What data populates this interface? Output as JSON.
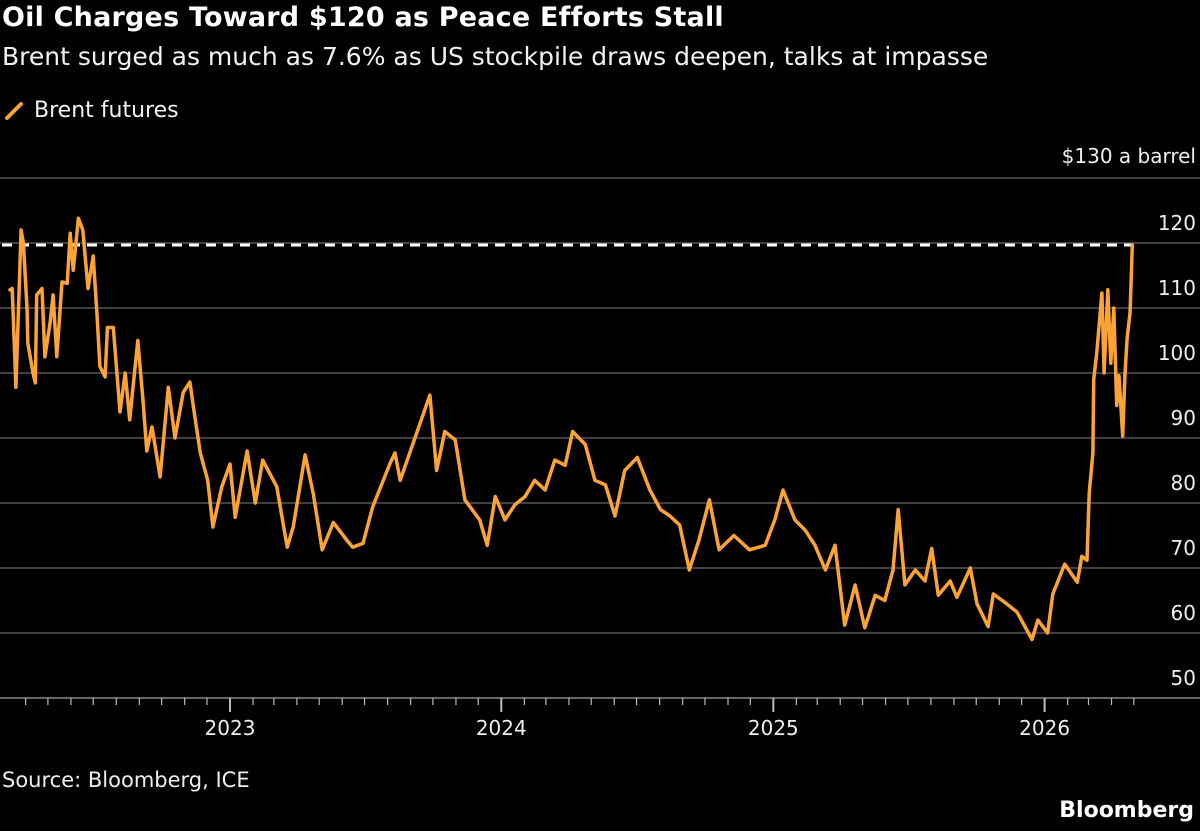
{
  "header": {
    "title": "Oil Charges Toward $120 as Peace Efforts Stall",
    "subtitle": "Brent surged as much as 7.6% as US stockpile draws deepen, talks at impasse"
  },
  "legend": {
    "label": "Brent futures",
    "icon": "line-swatch-icon"
  },
  "footer": {
    "source": "Source: Bloomberg, ICE",
    "logo": "Bloomberg"
  },
  "colors": {
    "series": "#fba336",
    "background": "#000000",
    "grid": "#555555",
    "reference_line": "#ffffff"
  },
  "chart_data": {
    "type": "line",
    "title": "Oil Charges Toward $120 as Peace Efforts Stall",
    "subtitle": "Brent surged as much as 7.6% as US stockpile draws deepen, talks at impasse",
    "xlabel": "",
    "ylabel": "",
    "y_unit_label": "$130 a barrel",
    "ylim": [
      50,
      130
    ],
    "y_ticks": [
      50,
      60,
      70,
      80,
      90,
      100,
      110,
      120
    ],
    "y_tick_labels": [
      "50",
      "60",
      "70",
      "80",
      "90",
      "100",
      "110",
      "120"
    ],
    "x_ticks": [
      "2023-01-01",
      "2024-01-01",
      "2025-01-01",
      "2026-01-01"
    ],
    "x_tick_labels": [
      "2023",
      "2024",
      "2025",
      "2026"
    ],
    "grid": "horizontal",
    "legend_position": "top-left",
    "reference_line": {
      "value": 119.7,
      "style": "dashed"
    },
    "series": [
      {
        "name": "Brent futures",
        "x": [
          "2022-03-11",
          "2022-03-14",
          "2022-03-19",
          "2022-03-26",
          "2022-03-29",
          "2022-04-03",
          "2022-04-04",
          "2022-04-11",
          "2022-04-14",
          "2022-04-16",
          "2022-04-23",
          "2022-04-27",
          "2022-05-04",
          "2022-05-08",
          "2022-05-13",
          "2022-05-20",
          "2022-05-27",
          "2022-05-31",
          "2022-06-04",
          "2022-06-11",
          "2022-06-17",
          "2022-06-24",
          "2022-07-01",
          "2022-07-06",
          "2022-07-10",
          "2022-07-17",
          "2022-07-20",
          "2022-07-28",
          "2022-08-06",
          "2022-08-13",
          "2022-08-19",
          "2022-08-30",
          "2022-09-06",
          "2022-09-11",
          "2022-09-18",
          "2022-09-29",
          "2022-10-10",
          "2022-10-19",
          "2022-10-30",
          "2022-11-08",
          "2022-11-15",
          "2022-11-22",
          "2022-12-02",
          "2022-12-09",
          "2022-12-21",
          "2023-01-01",
          "2023-01-08",
          "2023-01-24",
          "2023-02-04",
          "2023-02-14",
          "2023-03-05",
          "2023-03-19",
          "2023-03-27",
          "2023-04-12",
          "2023-04-23",
          "2023-05-05",
          "2023-05-20",
          "2023-06-07",
          "2023-06-15",
          "2023-06-29",
          "2023-07-12",
          "2023-08-04",
          "2023-08-11",
          "2023-08-18",
          "2023-09-27",
          "2023-10-06",
          "2023-10-17",
          "2023-10-31",
          "2023-11-13",
          "2023-12-03",
          "2023-12-13",
          "2023-12-24",
          "2024-01-06",
          "2024-01-19",
          "2024-02-02",
          "2024-02-15",
          "2024-02-29",
          "2024-03-13",
          "2024-03-27",
          "2024-04-06",
          "2024-04-23",
          "2024-05-06",
          "2024-05-20",
          "2024-06-02",
          "2024-06-15",
          "2024-07-02",
          "2024-07-19",
          "2024-08-02",
          "2024-08-15",
          "2024-08-28",
          "2024-09-10",
          "2024-09-23",
          "2024-10-07",
          "2024-10-20",
          "2024-11-09",
          "2024-11-30",
          "2024-12-21",
          "2025-01-03",
          "2025-01-14",
          "2025-01-30",
          "2025-02-13",
          "2025-02-26",
          "2025-03-12",
          "2025-03-25",
          "2025-04-07",
          "2025-04-21",
          "2025-05-04",
          "2025-05-18",
          "2025-05-31",
          "2025-06-11",
          "2025-06-18",
          "2025-06-27",
          "2025-07-11",
          "2025-07-24",
          "2025-08-02",
          "2025-08-11",
          "2025-08-27",
          "2025-09-05",
          "2025-09-23",
          "2025-10-02",
          "2025-10-17",
          "2025-10-24",
          "2025-11-11",
          "2025-11-25",
          "2025-12-15",
          "2025-12-23",
          "2026-01-05",
          "2026-01-12",
          "2026-01-28",
          "2026-02-14",
          "2026-02-20",
          "2026-02-27",
          "2026-03-02",
          "2026-03-07",
          "2026-03-08",
          "2026-03-12",
          "2026-03-19",
          "2026-03-22",
          "2026-03-27",
          "2026-03-31",
          "2026-04-04",
          "2026-04-08",
          "2026-04-11",
          "2026-04-16",
          "2026-04-19",
          "2026-04-22",
          "2026-04-26",
          "2026-04-29"
        ],
        "y": [
          112.8,
          113,
          97.8,
          122,
          120,
          109.7,
          104.6,
          100,
          98.5,
          112,
          113,
          102.5,
          107.7,
          112,
          102.5,
          114,
          113.8,
          121.5,
          115.8,
          123.8,
          122,
          113,
          118,
          109,
          101,
          99.4,
          107,
          107,
          94,
          100,
          92.8,
          105,
          95.8,
          88,
          91.7,
          84,
          97.8,
          90,
          97,
          98.6,
          93,
          87.7,
          83.5,
          76.3,
          82.5,
          86,
          77.8,
          88,
          80,
          86.6,
          82.5,
          73.2,
          76.3,
          87.4,
          81.5,
          72.8,
          77,
          74.3,
          73.2,
          73.8,
          79.4,
          86,
          87.7,
          83.5,
          96.6,
          85,
          91,
          89.7,
          80.5,
          77.4,
          73.5,
          81,
          77.4,
          79.7,
          81,
          83.5,
          82,
          86.6,
          85.8,
          91,
          89,
          83.5,
          82.8,
          78,
          85,
          87,
          82,
          79,
          78,
          76.6,
          69.7,
          74.3,
          80.5,
          72.8,
          75,
          72.8,
          73.5,
          77.4,
          82,
          77.4,
          75.8,
          73.5,
          69.7,
          73.5,
          61.2,
          67.4,
          60.8,
          65.8,
          65,
          69.7,
          79,
          67.4,
          69.7,
          68,
          73,
          65.8,
          68,
          65.5,
          70,
          64.5,
          61,
          66,
          64.5,
          63.2,
          59,
          62,
          60,
          66,
          70.6,
          67.8,
          71.8,
          71.2,
          81.5,
          87.7,
          99,
          103,
          112.3,
          100,
          112.8,
          101.5,
          110,
          95,
          99.6,
          90.3,
          99.6,
          105.3,
          109.4,
          119.7
        ]
      }
    ]
  }
}
